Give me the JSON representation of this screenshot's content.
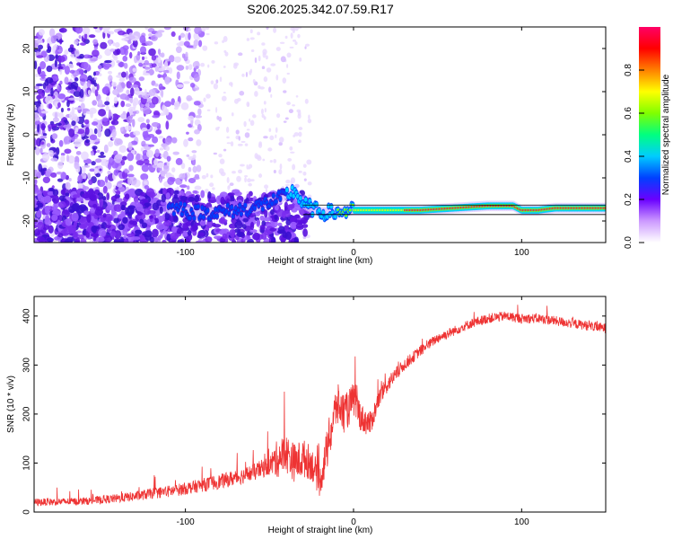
{
  "title": "S206.2025.342.07.59.R17",
  "chart_data": [
    {
      "type": "heatmap",
      "title": "S206.2025.342.07.59.R17",
      "xlabel": "Height of straight line (km)",
      "ylabel": "Frequency (Hz)",
      "xlim": [
        -190,
        150
      ],
      "ylim": [
        -25,
        25
      ],
      "x_ticks": [
        -100,
        0,
        100
      ],
      "y_ticks": [
        -20,
        -10,
        0,
        10,
        20
      ],
      "grid": false,
      "carrier": {
        "description_points_x": [
          -100,
          -80,
          -60,
          -45,
          -35,
          -30,
          -20,
          -10,
          0,
          20,
          40,
          60,
          80,
          95,
          100,
          110,
          120,
          150
        ],
        "description_points_y": [
          -18,
          -18,
          -17,
          -15,
          -13,
          -16,
          -18,
          -18,
          -17.5,
          -17.5,
          -17.5,
          -17,
          -16.5,
          -16.5,
          -17.5,
          -17.5,
          -17,
          -17
        ]
      },
      "colorbar": {
        "label": "Normalized spectral amplitude",
        "range": [
          0.0,
          1.0
        ],
        "ticks": [
          "0.0",
          "0.2",
          "0.4",
          "0.6",
          "0.8"
        ],
        "colors": [
          "#ffffff",
          "#cc99ff",
          "#6a00ff",
          "#0040ff",
          "#00ccff",
          "#00ff80",
          "#80ff00",
          "#ffff00",
          "#ff8000",
          "#ff0000",
          "#ff0066"
        ]
      }
    },
    {
      "type": "line",
      "xlabel": "Height of straight line (km)",
      "ylabel": "SNR (10 * v/v)",
      "xlim": [
        -190,
        150
      ],
      "ylim": [
        0,
        440
      ],
      "x_ticks": [
        -100,
        0,
        100
      ],
      "y_ticks": [
        0,
        100,
        200,
        300,
        400
      ],
      "grid": false,
      "series": [
        {
          "name": "SNR",
          "color": "#ee3333",
          "x": [
            -190,
            -160,
            -140,
            -130,
            -120,
            -110,
            -100,
            -90,
            -80,
            -70,
            -60,
            -50,
            -45,
            -40,
            -35,
            -30,
            -25,
            -20,
            -15,
            -10,
            -5,
            0,
            5,
            10,
            15,
            20,
            30,
            40,
            50,
            60,
            70,
            80,
            90,
            100,
            110,
            120,
            130,
            140,
            150
          ],
          "y": [
            20,
            22,
            28,
            32,
            38,
            42,
            48,
            55,
            62,
            70,
            80,
            95,
            110,
            120,
            100,
            110,
            100,
            60,
            140,
            220,
            200,
            230,
            190,
            180,
            230,
            260,
            300,
            330,
            355,
            370,
            385,
            395,
            400,
            395,
            395,
            390,
            385,
            380,
            375
          ],
          "noise_amplitude": [
            15,
            15,
            18,
            20,
            22,
            25,
            25,
            28,
            30,
            32,
            35,
            40,
            80,
            80,
            80,
            80,
            70,
            60,
            90,
            90,
            80,
            70,
            60,
            50,
            40,
            35,
            25,
            22,
            20,
            20,
            20,
            20,
            20,
            20,
            20,
            20,
            20,
            20,
            20
          ]
        }
      ]
    }
  ]
}
